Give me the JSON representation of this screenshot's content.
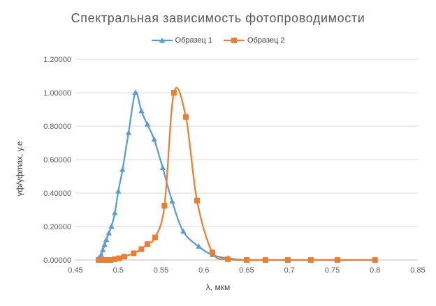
{
  "chart_data": {
    "type": "line",
    "title": "Спектральная зависимость фотопроводимости",
    "xlabel": "λ, мкм",
    "ylabel": "γф/γфmax, у.е",
    "xlim": [
      0.45,
      0.85
    ],
    "ylim": [
      0,
      1.2
    ],
    "x_ticks": [
      "0.45",
      "0.5",
      "0.55",
      "0.6",
      "0.65",
      "0.7",
      "0.75",
      "0.8",
      "0.85"
    ],
    "y_ticks": [
      "0.00000",
      "0.20000",
      "0.40000",
      "0.60000",
      "0.80000",
      "1.00000",
      "1.20000"
    ],
    "legend_position": "top",
    "grid": "horizontal",
    "series": [
      {
        "name": "Образец 1",
        "color": "#5B9BD5",
        "marker": "triangle",
        "points": [
          [
            0.477,
            0.01
          ],
          [
            0.48,
            0.03
          ],
          [
            0.482,
            0.06
          ],
          [
            0.484,
            0.09
          ],
          [
            0.486,
            0.12
          ],
          [
            0.489,
            0.16
          ],
          [
            0.492,
            0.2
          ],
          [
            0.496,
            0.28
          ],
          [
            0.5,
            0.41
          ],
          [
            0.505,
            0.54
          ],
          [
            0.512,
            0.76
          ],
          [
            0.52,
            1.0
          ],
          [
            0.527,
            0.89
          ],
          [
            0.534,
            0.81
          ],
          [
            0.542,
            0.72
          ],
          [
            0.552,
            0.55
          ],
          [
            0.563,
            0.35
          ],
          [
            0.576,
            0.17
          ],
          [
            0.594,
            0.08
          ],
          [
            0.61,
            0.03
          ],
          [
            0.628,
            0.01
          ],
          [
            0.65,
            0.0
          ],
          [
            0.672,
            0.0
          ],
          [
            0.698,
            0.0
          ],
          [
            0.725,
            0.0
          ],
          [
            0.756,
            0.0
          ],
          [
            0.8,
            0.0
          ]
        ]
      },
      {
        "name": "Образец 2",
        "color": "#ED7D31",
        "marker": "square",
        "points": [
          [
            0.477,
            0.0
          ],
          [
            0.482,
            0.0
          ],
          [
            0.486,
            0.0
          ],
          [
            0.491,
            0.0
          ],
          [
            0.496,
            0.005
          ],
          [
            0.501,
            0.01
          ],
          [
            0.507,
            0.02
          ],
          [
            0.518,
            0.04
          ],
          [
            0.527,
            0.065
          ],
          [
            0.534,
            0.095
          ],
          [
            0.543,
            0.135
          ],
          [
            0.554,
            0.325
          ],
          [
            0.565,
            1.0
          ],
          [
            0.579,
            0.855
          ],
          [
            0.592,
            0.355
          ],
          [
            0.61,
            0.045
          ],
          [
            0.628,
            0.005
          ],
          [
            0.65,
            0.0
          ],
          [
            0.672,
            0.0
          ],
          [
            0.698,
            0.0
          ],
          [
            0.725,
            0.0
          ],
          [
            0.756,
            0.0
          ],
          [
            0.8,
            0.0
          ]
        ]
      }
    ]
  }
}
